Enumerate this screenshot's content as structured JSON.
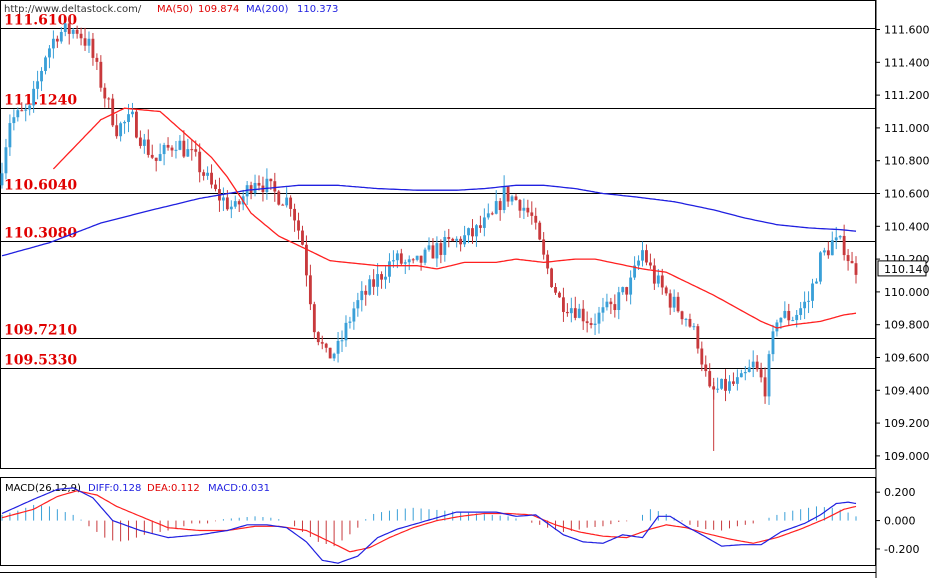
{
  "header": {
    "site": "http://www.deltastock.com/",
    "ma50_label": "MA(50)",
    "ma50_value": "109.874",
    "ma200_label": "MA(200)",
    "ma200_value": "110.373"
  },
  "colors": {
    "bull": "#3aa0d8",
    "bear": "#c8393c",
    "ma50": "#ff2020",
    "ma200": "#2020e0",
    "level_text": "#e00000",
    "macd_diff": "#2020e0",
    "macd_dea": "#ff2020",
    "macd_bar_pos": "#3aa0d8",
    "macd_bar_neg": "#c8393c"
  },
  "chart_data": [
    {
      "type": "candlestick",
      "title": "",
      "ylim": [
        108.92,
        111.78
      ],
      "y_ticks": [
        "111.600",
        "111.400",
        "111.200",
        "111.000",
        "110.800",
        "110.600",
        "110.400",
        "110.200",
        "110.000",
        "109.800",
        "109.600",
        "109.400",
        "109.200",
        "109.000"
      ],
      "last_price": "110.140",
      "levels": [
        {
          "value": 111.61,
          "label": "111.6100"
        },
        {
          "value": 111.124,
          "label": "111.1240"
        },
        {
          "value": 110.604,
          "label": "110.6040"
        },
        {
          "value": 110.308,
          "label": "110.3080"
        },
        {
          "value": 109.721,
          "label": "109.7210"
        },
        {
          "value": 109.533,
          "label": "109.5330"
        }
      ],
      "anchors": [
        [
          0,
          110.65
        ],
        [
          3,
          111.05
        ],
        [
          8,
          111.1
        ],
        [
          12,
          111.45
        ],
        [
          15,
          111.58
        ],
        [
          20,
          111.6
        ],
        [
          23,
          111.5
        ],
        [
          27,
          111.2
        ],
        [
          30,
          111.0
        ],
        [
          34,
          111.05
        ],
        [
          37,
          110.9
        ],
        [
          40,
          110.8
        ],
        [
          45,
          110.92
        ],
        [
          50,
          110.8
        ],
        [
          55,
          110.6
        ],
        [
          60,
          110.5
        ],
        [
          65,
          110.7
        ],
        [
          70,
          110.6
        ],
        [
          74,
          110.55
        ],
        [
          77,
          110.3
        ],
        [
          80,
          109.8
        ],
        [
          83,
          109.6
        ],
        [
          86,
          109.65
        ],
        [
          90,
          109.9
        ],
        [
          95,
          110.05
        ],
        [
          100,
          110.2
        ],
        [
          105,
          110.15
        ],
        [
          110,
          110.25
        ],
        [
          115,
          110.3
        ],
        [
          120,
          110.35
        ],
        [
          125,
          110.45
        ],
        [
          128,
          110.6
        ],
        [
          132,
          110.55
        ],
        [
          135,
          110.45
        ],
        [
          138,
          110.2
        ],
        [
          142,
          109.95
        ],
        [
          146,
          109.9
        ],
        [
          150,
          109.82
        ],
        [
          155,
          109.9
        ],
        [
          160,
          110.05
        ],
        [
          163,
          110.25
        ],
        [
          166,
          110.08
        ],
        [
          170,
          109.95
        ],
        [
          174,
          109.85
        ],
        [
          177,
          109.7
        ],
        [
          180,
          109.38
        ],
        [
          184,
          109.42
        ],
        [
          188,
          109.45
        ],
        [
          191,
          109.55
        ],
        [
          194,
          109.42
        ],
        [
          197,
          109.85
        ],
        [
          201,
          109.85
        ],
        [
          205,
          109.95
        ],
        [
          208,
          110.2
        ],
        [
          211,
          110.3
        ],
        [
          214,
          110.28
        ],
        [
          216,
          110.15
        ]
      ],
      "series": [
        {
          "name": "MA(50)",
          "points": [
            [
              13,
              110.75
            ],
            [
              25,
              111.05
            ],
            [
              31,
              111.12
            ],
            [
              40,
              111.1
            ],
            [
              47,
              110.95
            ],
            [
              53,
              110.82
            ],
            [
              57,
              110.7
            ],
            [
              63,
              110.48
            ],
            [
              70,
              110.34
            ],
            [
              77,
              110.26
            ],
            [
              83,
              110.19
            ],
            [
              95,
              110.16
            ],
            [
              105,
              110.16
            ],
            [
              110,
              110.14
            ],
            [
              117,
              110.18
            ],
            [
              125,
              110.18
            ],
            [
              130,
              110.2
            ],
            [
              137,
              110.18
            ],
            [
              145,
              110.2
            ],
            [
              150,
              110.2
            ],
            [
              156,
              110.17
            ],
            [
              162,
              110.14
            ],
            [
              168,
              110.12
            ],
            [
              174,
              110.05
            ],
            [
              180,
              109.98
            ],
            [
              186,
              109.9
            ],
            [
              192,
              109.82
            ],
            [
              196,
              109.78
            ],
            [
              200,
              109.8
            ],
            [
              207,
              109.82
            ],
            [
              213,
              109.86
            ],
            [
              216,
              109.87
            ]
          ]
        },
        {
          "name": "MA(200)",
          "points": [
            [
              0,
              110.22
            ],
            [
              12,
              110.3
            ],
            [
              25,
              110.42
            ],
            [
              38,
              110.5
            ],
            [
              50,
              110.57
            ],
            [
              62,
              110.62
            ],
            [
              75,
              110.65
            ],
            [
              85,
              110.65
            ],
            [
              95,
              110.63
            ],
            [
              105,
              110.62
            ],
            [
              115,
              110.62
            ],
            [
              122,
              110.63
            ],
            [
              130,
              110.65
            ],
            [
              137,
              110.65
            ],
            [
              145,
              110.63
            ],
            [
              152,
              110.6
            ],
            [
              160,
              110.58
            ],
            [
              170,
              110.55
            ],
            [
              180,
              110.5
            ],
            [
              188,
              110.45
            ],
            [
              196,
              110.41
            ],
            [
              204,
              110.39
            ],
            [
              212,
              110.38
            ],
            [
              216,
              110.37
            ]
          ]
        }
      ]
    },
    {
      "type": "bar+line",
      "title": "MACD(26,12,9)",
      "legend": [
        "DIFF:0.128",
        "DEA:0.112",
        "MACD:0.031"
      ],
      "ylim": [
        -0.32,
        0.3
      ],
      "y_ticks": [
        "0.200",
        "0.000",
        "-0.200"
      ],
      "series": [
        {
          "name": "DIFF",
          "points": [
            [
              0,
              0.05
            ],
            [
              8,
              0.15
            ],
            [
              14,
              0.22
            ],
            [
              18,
              0.23
            ],
            [
              23,
              0.16
            ],
            [
              28,
              0.0
            ],
            [
              35,
              -0.07
            ],
            [
              42,
              -0.12
            ],
            [
              50,
              -0.1
            ],
            [
              57,
              -0.07
            ],
            [
              62,
              -0.03
            ],
            [
              67,
              -0.03
            ],
            [
              72,
              -0.05
            ],
            [
              77,
              -0.15
            ],
            [
              81,
              -0.28
            ],
            [
              85,
              -0.3
            ],
            [
              90,
              -0.25
            ],
            [
              95,
              -0.12
            ],
            [
              100,
              -0.06
            ],
            [
              105,
              -0.02
            ],
            [
              110,
              0.02
            ],
            [
              115,
              0.06
            ],
            [
              120,
              0.06
            ],
            [
              125,
              0.06
            ],
            [
              130,
              0.03
            ],
            [
              135,
              0.04
            ],
            [
              138,
              -0.02
            ],
            [
              142,
              -0.1
            ],
            [
              147,
              -0.15
            ],
            [
              152,
              -0.16
            ],
            [
              157,
              -0.1
            ],
            [
              162,
              -0.12
            ],
            [
              166,
              0.03
            ],
            [
              169,
              0.03
            ],
            [
              173,
              -0.04
            ],
            [
              177,
              -0.1
            ],
            [
              182,
              -0.18
            ],
            [
              187,
              -0.17
            ],
            [
              192,
              -0.17
            ],
            [
              197,
              -0.08
            ],
            [
              203,
              -0.02
            ],
            [
              207,
              0.04
            ],
            [
              211,
              0.12
            ],
            [
              214,
              0.13
            ],
            [
              216,
              0.12
            ]
          ]
        },
        {
          "name": "DEA",
          "points": [
            [
              0,
              0.02
            ],
            [
              8,
              0.08
            ],
            [
              14,
              0.17
            ],
            [
              19,
              0.21
            ],
            [
              24,
              0.18
            ],
            [
              29,
              0.1
            ],
            [
              35,
              0.03
            ],
            [
              42,
              -0.05
            ],
            [
              50,
              -0.07
            ],
            [
              57,
              -0.07
            ],
            [
              64,
              -0.04
            ],
            [
              70,
              -0.04
            ],
            [
              77,
              -0.07
            ],
            [
              83,
              -0.15
            ],
            [
              88,
              -0.22
            ],
            [
              93,
              -0.19
            ],
            [
              98,
              -0.12
            ],
            [
              104,
              -0.05
            ],
            [
              110,
              0.0
            ],
            [
              116,
              0.03
            ],
            [
              122,
              0.05
            ],
            [
              128,
              0.05
            ],
            [
              134,
              0.04
            ],
            [
              140,
              -0.03
            ],
            [
              146,
              -0.08
            ],
            [
              152,
              -0.11
            ],
            [
              158,
              -0.12
            ],
            [
              164,
              -0.06
            ],
            [
              168,
              -0.03
            ],
            [
              173,
              -0.05
            ],
            [
              178,
              -0.09
            ],
            [
              184,
              -0.13
            ],
            [
              190,
              -0.16
            ],
            [
              196,
              -0.12
            ],
            [
              202,
              -0.06
            ],
            [
              208,
              0.01
            ],
            [
              213,
              0.08
            ],
            [
              216,
              0.1
            ]
          ]
        },
        {
          "name": "MACD",
          "bars": [
            [
              0,
              0.04
            ],
            [
              4,
              0.07
            ],
            [
              8,
              0.11
            ],
            [
              12,
              0.1
            ],
            [
              16,
              0.06
            ],
            [
              19,
              0.03
            ],
            [
              22,
              -0.04
            ],
            [
              26,
              -0.12
            ],
            [
              29,
              -0.15
            ],
            [
              32,
              -0.14
            ],
            [
              36,
              -0.1
            ],
            [
              40,
              -0.08
            ],
            [
              44,
              -0.06
            ],
            [
              48,
              -0.02
            ],
            [
              52,
              -0.02
            ],
            [
              56,
              0.01
            ],
            [
              60,
              0.02
            ],
            [
              64,
              0.03
            ],
            [
              68,
              0.02
            ],
            [
              72,
              0.0
            ],
            [
              76,
              -0.08
            ],
            [
              80,
              -0.15
            ],
            [
              84,
              -0.18
            ],
            [
              87,
              -0.12
            ],
            [
              90,
              -0.05
            ],
            [
              93,
              0.04
            ],
            [
              96,
              0.06
            ],
            [
              100,
              0.08
            ],
            [
              104,
              0.09
            ],
            [
              108,
              0.08
            ],
            [
              112,
              0.07
            ],
            [
              116,
              0.06
            ],
            [
              120,
              0.05
            ],
            [
              124,
              0.04
            ],
            [
              128,
              0.03
            ],
            [
              132,
              0.0
            ],
            [
              136,
              -0.03
            ],
            [
              139,
              -0.06
            ],
            [
              142,
              -0.08
            ],
            [
              145,
              -0.07
            ],
            [
              148,
              -0.05
            ],
            [
              152,
              -0.04
            ],
            [
              156,
              -0.01
            ],
            [
              160,
              0.0
            ],
            [
              164,
              0.08
            ],
            [
              167,
              0.06
            ],
            [
              170,
              0.02
            ],
            [
              174,
              -0.03
            ],
            [
              178,
              -0.06
            ],
            [
              182,
              -0.07
            ],
            [
              186,
              -0.04
            ],
            [
              190,
              -0.02
            ],
            [
              194,
              0.02
            ],
            [
              198,
              0.06
            ],
            [
              202,
              0.08
            ],
            [
              206,
              0.1
            ],
            [
              210,
              0.09
            ],
            [
              213,
              0.07
            ],
            [
              216,
              0.03
            ]
          ]
        }
      ]
    }
  ]
}
